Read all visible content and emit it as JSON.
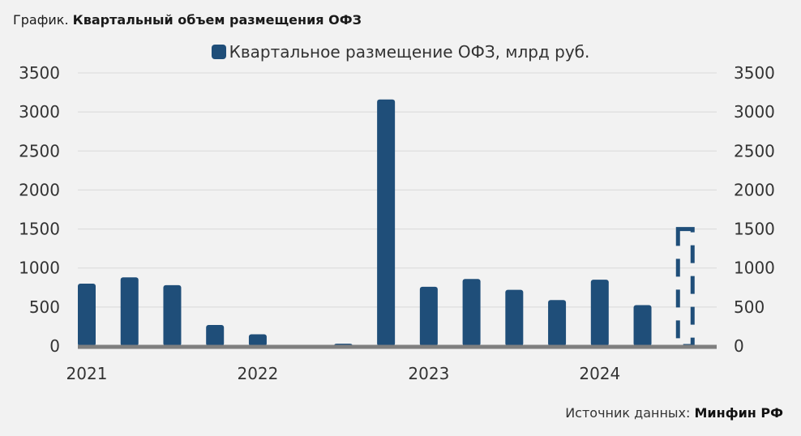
{
  "header": {
    "prefix": "График.",
    "title": "Квартальный объем размещения ОФЗ"
  },
  "footer": {
    "source_label": "Источник данных:",
    "source_name": "Минфин РФ"
  },
  "colors": {
    "bar": "#1f4e79",
    "axis": "#7f7f7f",
    "grid": "#d9d9d9",
    "background": "#f2f2f2"
  },
  "chart_data": {
    "type": "bar",
    "title": "",
    "xlabel": "",
    "ylabel": "",
    "ylim": [
      0,
      3500
    ],
    "yticks": [
      0,
      500,
      1000,
      1500,
      2000,
      2500,
      3000,
      3500
    ],
    "y_axes": [
      "left",
      "right"
    ],
    "grid": true,
    "legend_position": "top-center",
    "year_labels": [
      "2021",
      "2022",
      "2023",
      "2024"
    ],
    "series": [
      {
        "name": "Квартальное размещение ОФЗ, млрд руб.",
        "values": [
          800,
          880,
          780,
          270,
          150,
          0,
          30,
          3160,
          760,
          860,
          720,
          590,
          850,
          525,
          1500
        ],
        "projected_last": true
      }
    ]
  }
}
